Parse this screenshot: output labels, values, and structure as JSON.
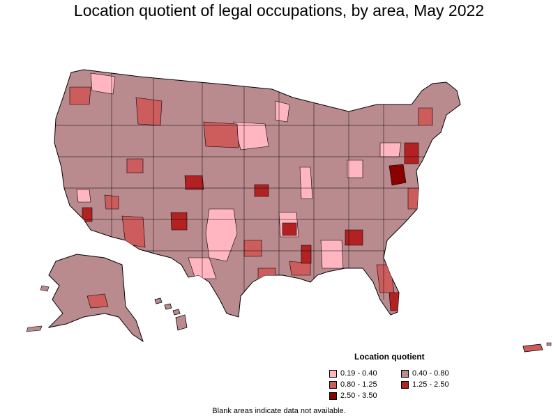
{
  "title": "Location quotient of legal occupations, by area, May 2022",
  "colors": {
    "c1": "#ffb6c1",
    "c2": "#b98a8e",
    "c3": "#cd5c5c",
    "c4": "#b22222",
    "c5": "#8b0000",
    "border": "#000000"
  },
  "legend": {
    "title": "Location quotient",
    "items": [
      {
        "label": "0.19 - 0.40",
        "color_key": "c1"
      },
      {
        "label": "0.40 - 0.80",
        "color_key": "c2"
      },
      {
        "label": "0.80 - 1.25",
        "color_key": "c3"
      },
      {
        "label": "1.25 - 2.50",
        "color_key": "c4"
      },
      {
        "label": "2.50 - 3.50",
        "color_key": "c5"
      }
    ]
  },
  "footnote": "Blank areas indicate data not available."
}
